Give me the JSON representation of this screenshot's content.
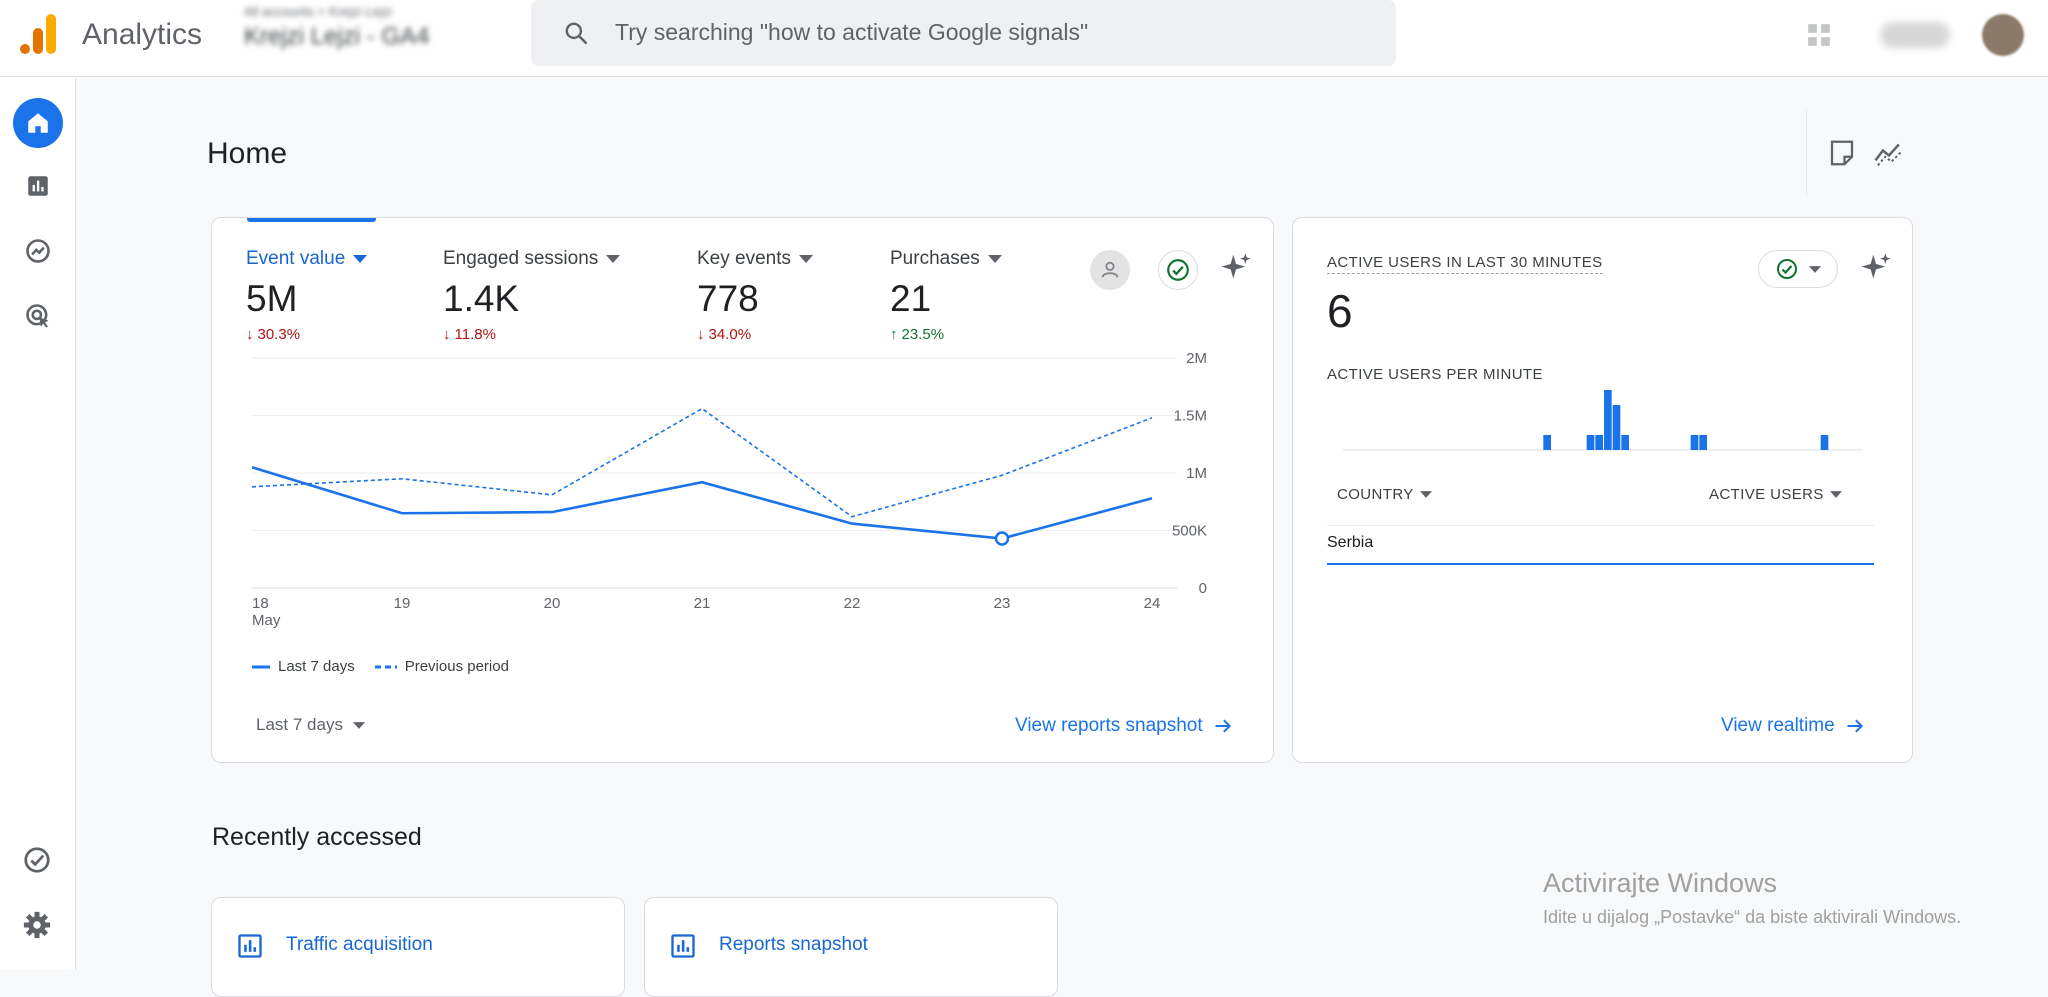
{
  "header": {
    "app_title": "Analytics",
    "account_line1": "All accounts > Krejzi Lejzi",
    "account_line2": "Krejzi Lejzi - GA4",
    "search_placeholder": "Try searching \"how to activate Google signals\""
  },
  "page": {
    "title": "Home"
  },
  "overview_card": {
    "metrics": [
      {
        "label": "Event value",
        "value": "5M",
        "change": "30.3%",
        "direction": "down",
        "selected": true
      },
      {
        "label": "Engaged sessions",
        "value": "1.4K",
        "change": "11.8%",
        "direction": "down",
        "selected": false
      },
      {
        "label": "Key events",
        "value": "778",
        "change": "34.0%",
        "direction": "down",
        "selected": false
      },
      {
        "label": "Purchases",
        "value": "21",
        "change": "23.5%",
        "direction": "up",
        "selected": false
      }
    ],
    "legend_current": "Last 7 days",
    "legend_previous": "Previous period",
    "period_label": "Last 7 days",
    "view_link": "View reports snapshot"
  },
  "chart_data": {
    "type": "line",
    "x": [
      "18",
      "19",
      "20",
      "21",
      "22",
      "23",
      "24"
    ],
    "x_sub_first": "May",
    "yticks": [
      "0",
      "500K",
      "1M",
      "1.5M",
      "2M"
    ],
    "ylim": [
      0,
      2000000
    ],
    "series": [
      {
        "name": "Last 7 days",
        "values": [
          1050000,
          650000,
          660000,
          920000,
          560000,
          430000,
          780000
        ],
        "color": "#1a73e8",
        "dash": false
      },
      {
        "name": "Previous period",
        "values": [
          880000,
          950000,
          810000,
          1560000,
          620000,
          980000,
          1480000
        ],
        "color": "#1a73e8",
        "dash": true
      }
    ],
    "highlight_index": 5,
    "grid": true
  },
  "realtime_card": {
    "title": "ACTIVE USERS IN LAST 30 MINUTES",
    "value": "6",
    "per_minute_label": "ACTIVE USERS PER MINUTE",
    "per_minute_values": [
      0,
      0,
      0,
      0,
      0,
      0,
      0,
      0,
      0,
      0,
      0,
      0,
      0,
      0,
      0,
      0,
      0,
      0,
      0,
      0,
      0,
      0,
      0,
      1,
      0,
      0,
      0,
      0,
      1,
      1,
      4,
      3,
      1,
      0,
      0,
      0,
      0,
      0,
      0,
      0,
      1,
      1,
      0,
      0,
      0,
      0,
      0,
      0,
      0,
      0,
      0,
      0,
      0,
      0,
      0,
      1,
      0,
      0,
      0,
      0
    ],
    "col_country": "COUNTRY",
    "col_users": "ACTIVE USERS",
    "rows": [
      {
        "country": "Serbia"
      }
    ],
    "view_link": "View realtime"
  },
  "recent": {
    "title": "Recently accessed",
    "items": [
      {
        "label": "Traffic acquisition"
      },
      {
        "label": "Reports snapshot"
      }
    ]
  },
  "watermark": {
    "line1": "Activirajte Windows",
    "line2": "Idite u dijalog „Postavke“ da biste aktivirali Windows."
  },
  "colors": {
    "accent": "#1a73e8",
    "down": "#b31412",
    "up": "#137333"
  }
}
